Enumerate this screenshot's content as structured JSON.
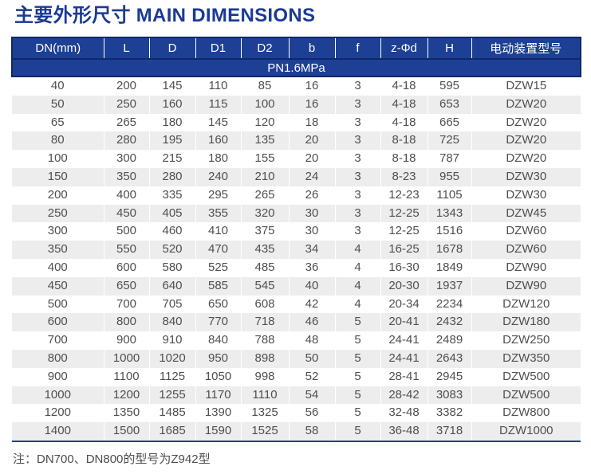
{
  "title": "主要外形尺寸 MAIN DIMENSIONS",
  "colors": {
    "title_blue": "#1b3a94",
    "header_blue": "#1d4094",
    "header_border_navy": "#12266b",
    "row_stripe_gray": "#ededed",
    "cell_text_gray": "#4f4f4f"
  },
  "table": {
    "columns": [
      "DN(mm)",
      "L",
      "D",
      "D1",
      "D2",
      "b",
      "f",
      "z-Φd",
      "H",
      "电动装置型号"
    ],
    "group_label": "PN1.6MPa",
    "rows": [
      [
        "40",
        "200",
        "145",
        "110",
        "85",
        "16",
        "3",
        "4-18",
        "595",
        "DZW15"
      ],
      [
        "50",
        "250",
        "160",
        "115",
        "100",
        "16",
        "3",
        "4-18",
        "653",
        "DZW20"
      ],
      [
        "65",
        "265",
        "180",
        "145",
        "120",
        "18",
        "3",
        "4-18",
        "665",
        "DZW20"
      ],
      [
        "80",
        "280",
        "195",
        "160",
        "135",
        "20",
        "3",
        "8-18",
        "725",
        "DZW20"
      ],
      [
        "100",
        "300",
        "215",
        "180",
        "155",
        "20",
        "3",
        "8-18",
        "787",
        "DZW20"
      ],
      [
        "150",
        "350",
        "280",
        "240",
        "210",
        "24",
        "3",
        "8-23",
        "955",
        "DZW30"
      ],
      [
        "200",
        "400",
        "335",
        "295",
        "265",
        "26",
        "3",
        "12-23",
        "1105",
        "DZW30"
      ],
      [
        "250",
        "450",
        "405",
        "355",
        "320",
        "30",
        "3",
        "12-25",
        "1343",
        "DZW45"
      ],
      [
        "300",
        "500",
        "460",
        "410",
        "375",
        "30",
        "3",
        "12-25",
        "1516",
        "DZW60"
      ],
      [
        "350",
        "550",
        "520",
        "470",
        "435",
        "34",
        "4",
        "16-25",
        "1678",
        "DZW60"
      ],
      [
        "400",
        "600",
        "580",
        "525",
        "485",
        "36",
        "4",
        "16-30",
        "1849",
        "DZW90"
      ],
      [
        "450",
        "650",
        "640",
        "585",
        "545",
        "40",
        "4",
        "20-30",
        "1937",
        "DZW90"
      ],
      [
        "500",
        "700",
        "705",
        "650",
        "608",
        "42",
        "4",
        "20-34",
        "2234",
        "DZW120"
      ],
      [
        "600",
        "800",
        "840",
        "770",
        "718",
        "46",
        "5",
        "20-41",
        "2432",
        "DZW180"
      ],
      [
        "700",
        "900",
        "910",
        "840",
        "788",
        "48",
        "5",
        "24-41",
        "2489",
        "DZW250"
      ],
      [
        "800",
        "1000",
        "1020",
        "950",
        "898",
        "50",
        "5",
        "24-41",
        "2643",
        "DZW350"
      ],
      [
        "900",
        "1100",
        "1125",
        "1050",
        "998",
        "52",
        "5",
        "28-41",
        "2945",
        "DZW500"
      ],
      [
        "1000",
        "1200",
        "1255",
        "1170",
        "1110",
        "54",
        "5",
        "28-42",
        "3083",
        "DZW500"
      ],
      [
        "1200",
        "1350",
        "1485",
        "1390",
        "1325",
        "56",
        "5",
        "32-48",
        "3382",
        "DZW800"
      ],
      [
        "1400",
        "1500",
        "1685",
        "1590",
        "1525",
        "58",
        "5",
        "36-48",
        "3718",
        "DZW1000"
      ]
    ]
  },
  "note": "注：DN700、DN800的型号为Z942型"
}
